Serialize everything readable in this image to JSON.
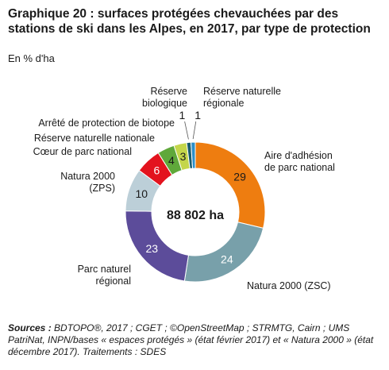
{
  "title": "Graphique 20 : surfaces protégées chevauchées par des stations de ski dans les Alpes, en 2017, par type de protection",
  "unit_label": "En % d'ha",
  "chart_data": {
    "type": "pie",
    "variant": "donut",
    "center_label": "88 802 ha",
    "slices": [
      {
        "label": "Aire d'adhésion de parc national",
        "value": 29,
        "color": "#ee7d10"
      },
      {
        "label": "Natura 2000 (ZSC)",
        "value": 24,
        "color": "#78a0aa"
      },
      {
        "label": "Parc naturel régional",
        "value": 23,
        "color": "#5c4c9a"
      },
      {
        "label": "Natura 2000 (ZPS)",
        "value": 10,
        "color": "#bccfd8"
      },
      {
        "label": "Cœur de parc national",
        "value": 6,
        "color": "#e3131e"
      },
      {
        "label": "Réserve naturelle nationale",
        "value": 4,
        "color": "#5fa83a"
      },
      {
        "label": "Arrêté de protection de biotope",
        "value": 3,
        "color": "#c4d64a"
      },
      {
        "label": "Réserve biologique",
        "value": 1,
        "color": "#1a5d6e"
      },
      {
        "label": "Réserve naturelle régionale",
        "value": 1,
        "color": "#2b8fc9"
      }
    ]
  },
  "sources_label": "Sources :",
  "sources_text": " BDTOPO®, 2017 ; CGET ; ©OpenStreetMap ; STRMTG, Cairn ; UMS PatriNat, INPN/bases « espaces protégés » (état février 2017) et « Natura 2000 » (état décembre 2017). Traitements : SDES"
}
